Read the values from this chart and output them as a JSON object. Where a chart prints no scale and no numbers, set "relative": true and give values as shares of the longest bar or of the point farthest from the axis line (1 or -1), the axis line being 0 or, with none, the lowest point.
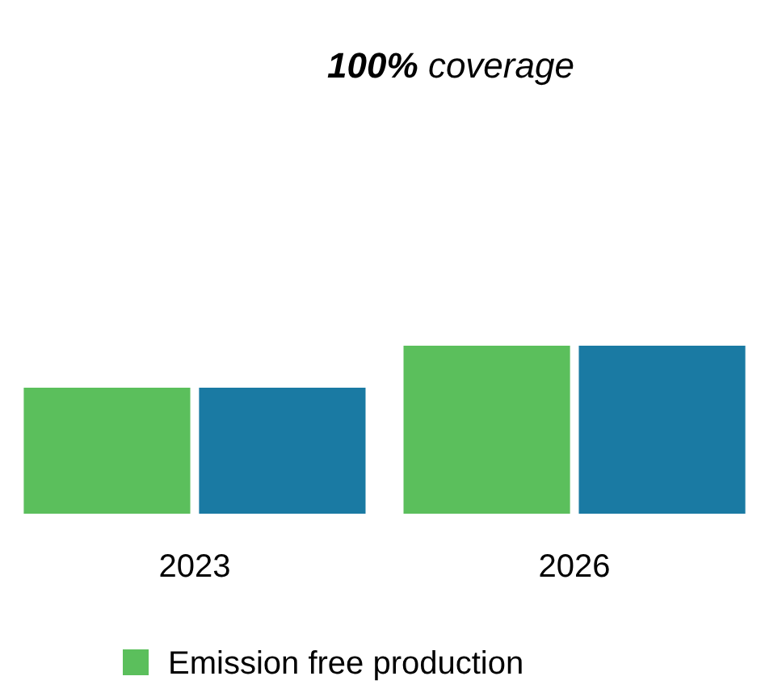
{
  "chart_data": {
    "type": "bar",
    "title": "100% coverage",
    "relative": true,
    "categories": [
      "2023",
      "2026"
    ],
    "series": [
      {
        "name": "Emission free production",
        "color": "#5bbf5c",
        "values": [
          0.75,
          1
        ]
      },
      {
        "color": "#1a7aa3",
        "values": [
          0.75,
          1
        ]
      }
    ],
    "legend": "bottom"
  }
}
